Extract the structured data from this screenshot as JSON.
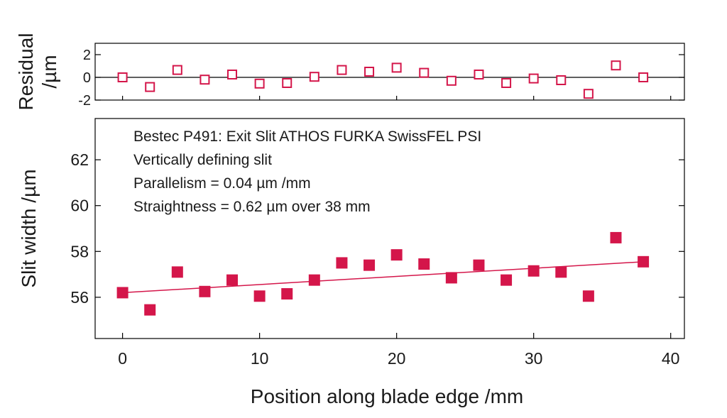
{
  "chart_data": [
    {
      "type": "scatter",
      "role": "residual-panel",
      "xlabel": "",
      "ylabel": [
        "Residual",
        "/µm"
      ],
      "xlim": [
        -2,
        41
      ],
      "ylim": [
        -2,
        3
      ],
      "yticks": [
        2,
        0,
        -2
      ],
      "ytick_labels": [
        "2",
        "0",
        "-2"
      ],
      "zero_line": true,
      "marker": "open-square",
      "color": "#d4164a",
      "x": [
        0,
        2,
        4,
        6,
        8,
        10,
        12,
        14,
        16,
        18,
        20,
        22,
        24,
        26,
        28,
        30,
        32,
        34,
        36,
        38
      ],
      "y": [
        0.0,
        -0.85,
        0.65,
        -0.2,
        0.25,
        -0.55,
        -0.5,
        0.05,
        0.65,
        0.5,
        0.85,
        0.4,
        -0.3,
        0.25,
        -0.5,
        -0.1,
        -0.25,
        -1.45,
        1.05,
        0.0
      ]
    },
    {
      "type": "scatter",
      "role": "main-panel",
      "xlabel": "Position along blade edge /mm",
      "ylabel": "Slit width /µm",
      "xlim": [
        -2,
        41
      ],
      "ylim": [
        54.2,
        63.8
      ],
      "xticks": [
        0,
        10,
        20,
        30,
        40
      ],
      "xtick_labels": [
        "0",
        "10",
        "20",
        "30",
        "40"
      ],
      "yticks": [
        56,
        58,
        60,
        62
      ],
      "ytick_labels": [
        "56",
        "58",
        "60",
        "62"
      ],
      "marker": "filled-square",
      "color": "#d4164a",
      "x": [
        0,
        2,
        4,
        6,
        8,
        10,
        12,
        14,
        16,
        18,
        20,
        22,
        24,
        26,
        28,
        30,
        32,
        34,
        36,
        38
      ],
      "y": [
        56.2,
        55.45,
        57.1,
        56.25,
        56.75,
        56.05,
        56.15,
        56.75,
        57.5,
        57.4,
        57.85,
        57.45,
        56.85,
        57.4,
        56.75,
        57.15,
        57.1,
        56.05,
        58.6,
        57.55
      ],
      "fit_line": {
        "x": [
          0,
          38
        ],
        "y": [
          56.2,
          57.55
        ]
      },
      "annotations": [
        "Bestec P491: Exit Slit ATHOS FURKA SwissFEL PSI",
        "Vertically defining slit",
        "Parallelism = 0.04 µm /mm",
        "Straightness = 0.62 µm over 38 mm"
      ]
    }
  ]
}
